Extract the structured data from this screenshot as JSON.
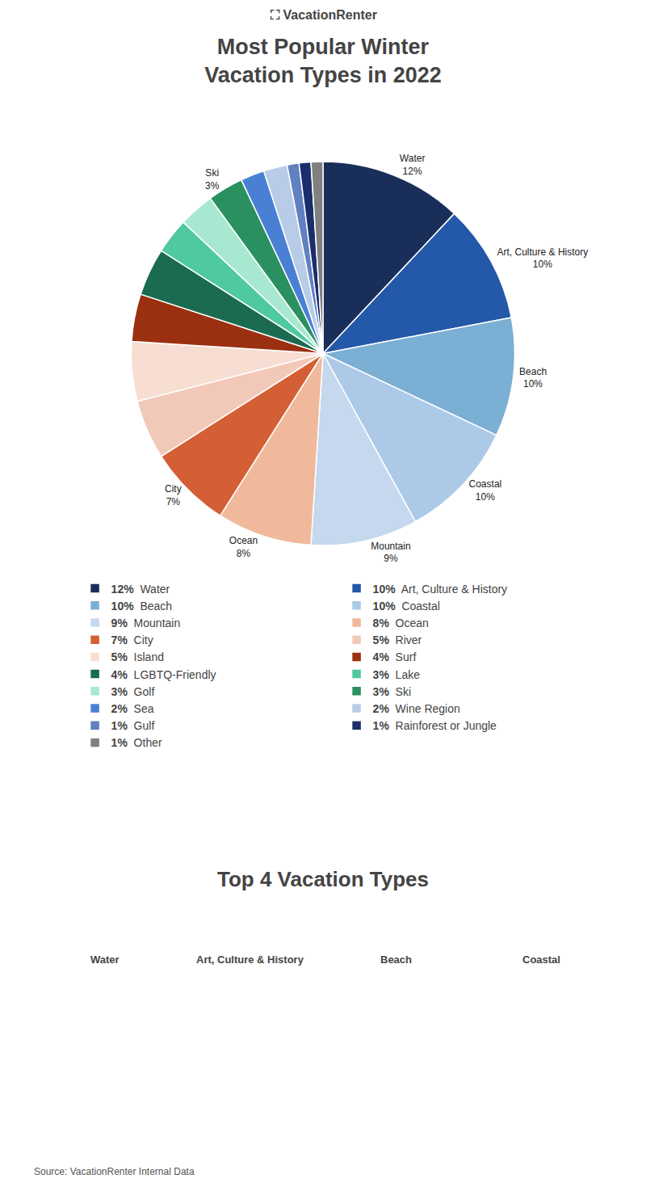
{
  "chart_data": {
    "type": "pie",
    "header": "⛶ VacationRenter",
    "title": "Most Popular Winter\nVacation Types in 2022",
    "subtitle": "Top 4 Vacation Types",
    "categories": [
      "Water",
      "Art, Culture & History",
      "Beach",
      "Coastal",
      "Mountain",
      "Ocean",
      "City",
      "River",
      "Island",
      "Surf",
      "LGBTQ-Friendly",
      "Lake",
      "Golf",
      "Ski",
      "Sea",
      "Wine Region",
      "Gulf",
      "Rainforest or Jungle",
      "Other"
    ],
    "values": [
      12,
      10,
      10,
      10,
      9,
      8,
      7,
      5,
      5,
      4,
      4,
      3,
      3,
      3,
      2,
      2,
      1,
      1,
      1
    ],
    "value_labels": [
      "12%",
      "10%",
      "10%",
      "10%",
      "9%",
      "8%",
      "7%",
      "5%",
      "5%",
      "4%",
      "4%",
      "3%",
      "3%",
      "3%",
      "2%",
      "2%",
      "1%",
      "1%",
      "1%"
    ],
    "colors": [
      "#1a2e5a",
      "#2458a8",
      "#7bafd4",
      "#adc9e8",
      "#c5d8ee",
      "#f0b99b",
      "#d45f35",
      "#f2c9b8",
      "#f7ddd2",
      "#9b3010",
      "#1a6b50",
      "#4ec9a0",
      "#a8e8d0",
      "#2a9060",
      "#4a80d4",
      "#b8cce8",
      "#6080c0",
      "#1a2e6b",
      "#808080"
    ],
    "annotations": [
      {
        "text": "Water\n12%",
        "category": "Water"
      },
      {
        "text": "Art, Culture & History\n10%",
        "category": "Art, Culture & History"
      },
      {
        "text": "Beach\n10%",
        "category": "Beach"
      },
      {
        "text": "Coastal\n10%",
        "category": "Coastal"
      },
      {
        "text": "Mountain\n9%",
        "category": "Mountain"
      },
      {
        "text": "Ocean\n8%",
        "category": "Ocean"
      },
      {
        "text": "City\n7%",
        "category": "City"
      },
      {
        "text": "Ski\n3%",
        "category": "Ski"
      }
    ],
    "highlights": [
      "Water",
      "Art, Culture & History",
      "Beach",
      "Coastal"
    ],
    "source": "Source: VacationRenter Internal Data",
    "legend": "bottom"
  }
}
